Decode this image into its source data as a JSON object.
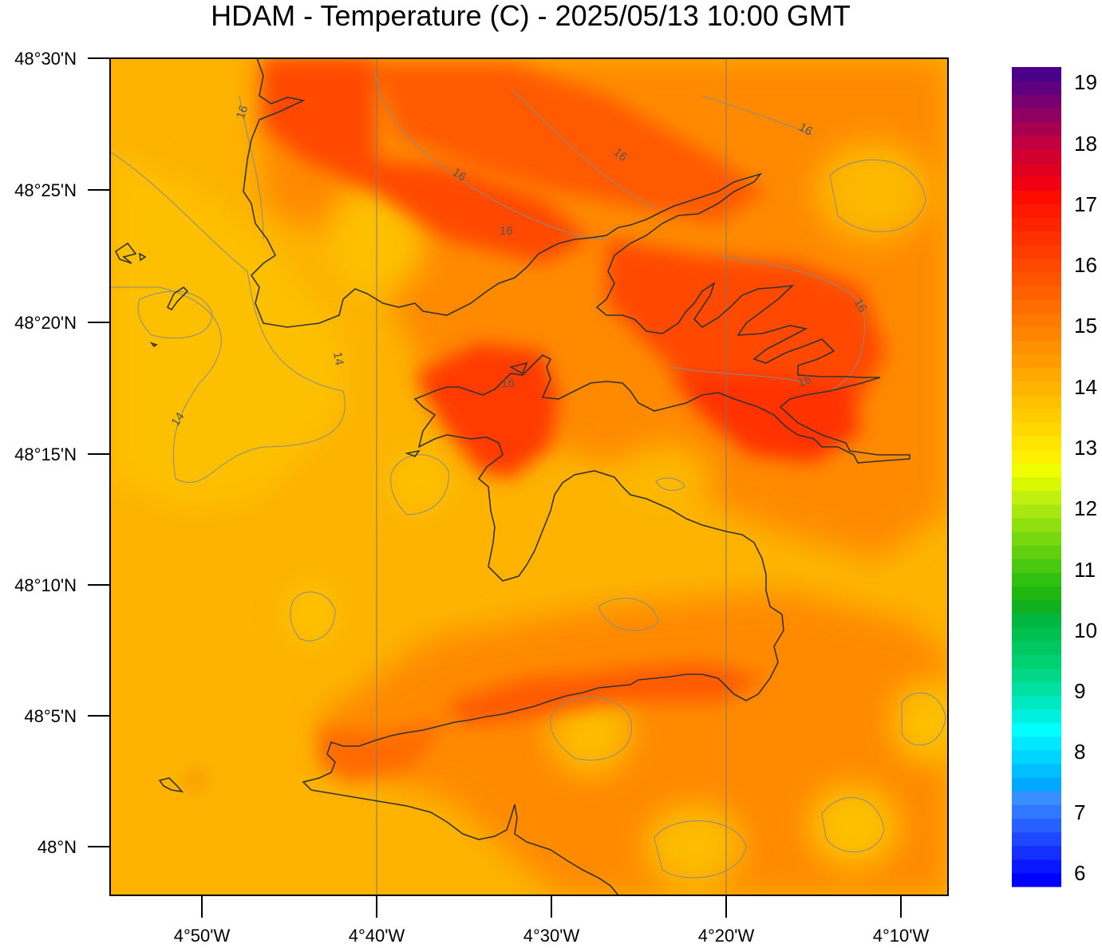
{
  "title": "HDAM - Temperature (C)  -  2025/05/13  10:00 GMT",
  "map": {
    "lat_ticks": [
      "48°30'N",
      "48°25'N",
      "48°20'N",
      "48°15'N",
      "48°10'N",
      "48°5'N",
      "48°N"
    ],
    "lon_ticks": [
      "4°50'W",
      "4°40'W",
      "4°30'W",
      "4°20'W",
      "4°10'W"
    ],
    "contour_labels": [
      "16",
      "16",
      "16",
      "16",
      "16",
      "16",
      "16",
      "16",
      "14",
      "14"
    ],
    "colors": {
      "background": "#fdb300",
      "warm": "#ff7f00",
      "hot": "#ff3c00",
      "hottest": "#f51400",
      "cool": "#fdc300",
      "coast": "#333333"
    }
  },
  "colorbar": {
    "labels": [
      "19",
      "18",
      "17",
      "16",
      "15",
      "14",
      "13",
      "12",
      "11",
      "10",
      "9",
      "8",
      "7",
      "6"
    ],
    "colors": [
      "#0000ff",
      "#0a18ff",
      "#1430ff",
      "#1e48ff",
      "#2860ff",
      "#3078ff",
      "#3890ff",
      "#00a8ff",
      "#00bfff",
      "#00d4ff",
      "#00e8ff",
      "#00ffff",
      "#00f0e0",
      "#00e8c0",
      "#00e0a0",
      "#00d888",
      "#00d070",
      "#00c860",
      "#00c050",
      "#00b840",
      "#10b020",
      "#20b810",
      "#30c010",
      "#48c810",
      "#60d010",
      "#78d810",
      "#90e010",
      "#a8e810",
      "#c0f010",
      "#d8f800",
      "#f0ff00",
      "#fff000",
      "#ffe400",
      "#ffd800",
      "#ffcc00",
      "#ffc000",
      "#ffb400",
      "#ffa800",
      "#ff9c00",
      "#ff9000",
      "#ff8400",
      "#ff7800",
      "#ff6c00",
      "#ff6000",
      "#ff5400",
      "#ff4800",
      "#ff3c00",
      "#ff3000",
      "#ff2400",
      "#ff1800",
      "#ff0c00",
      "#f00010",
      "#e00020",
      "#d00030",
      "#c00040",
      "#a80050",
      "#900060",
      "#780070",
      "#600080",
      "#4a008a"
    ]
  }
}
